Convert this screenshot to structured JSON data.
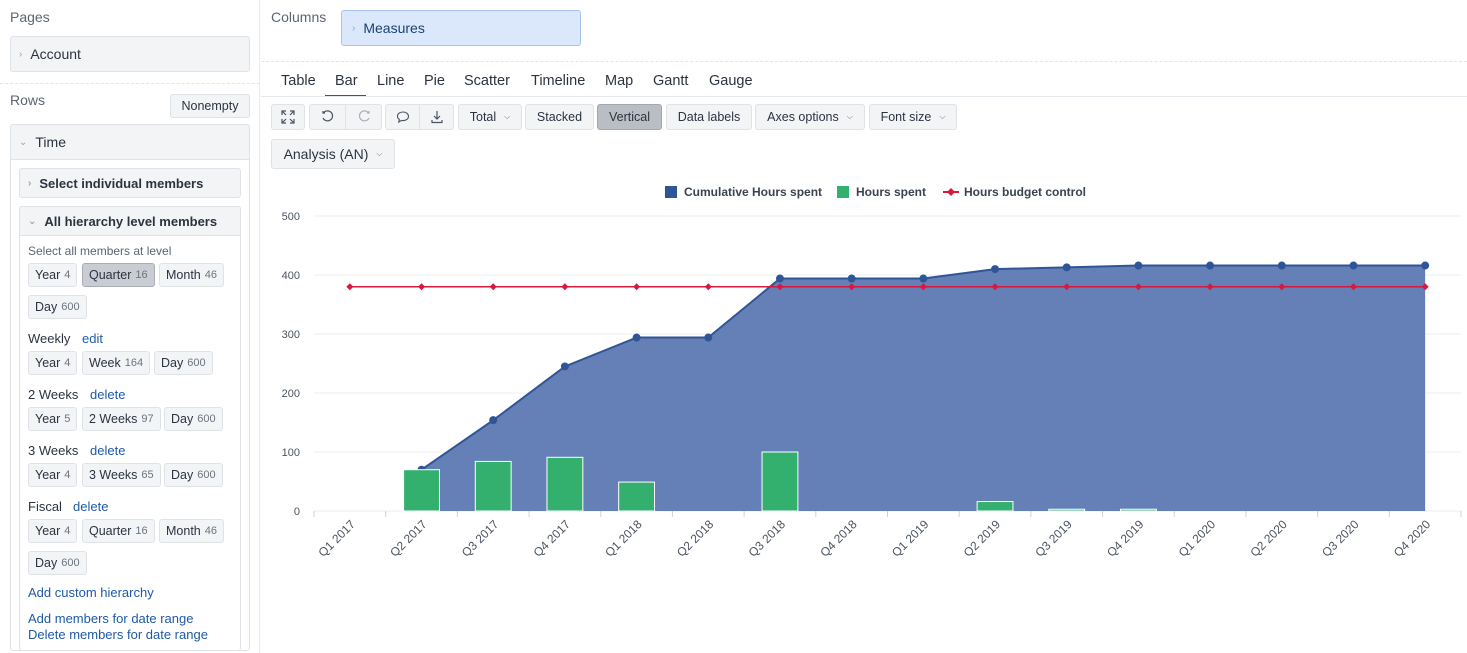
{
  "left": {
    "pages_title": "Pages",
    "pages_item": "Account",
    "rows_title": "Rows",
    "nonempty_label": "Nonempty",
    "time_title": "Time",
    "select_individual": "Select individual members",
    "all_hierarchy": "All hierarchy level members",
    "select_all_at_level": "Select all members at level",
    "default_levels": [
      {
        "label": "Year",
        "count": "4"
      },
      {
        "label": "Quarter",
        "count": "16"
      },
      {
        "label": "Month",
        "count": "46"
      },
      {
        "label": "Day",
        "count": "600"
      }
    ],
    "weekly": {
      "title": "Weekly",
      "action": "edit",
      "levels": [
        {
          "label": "Year",
          "count": "4"
        },
        {
          "label": "Week",
          "count": "164"
        },
        {
          "label": "Day",
          "count": "600"
        }
      ]
    },
    "two_weeks": {
      "title": "2 Weeks",
      "action": "delete",
      "levels": [
        {
          "label": "Year",
          "count": "5"
        },
        {
          "label": "2 Weeks",
          "count": "97"
        },
        {
          "label": "Day",
          "count": "600"
        }
      ]
    },
    "three_weeks": {
      "title": "3 Weeks",
      "action": "delete",
      "levels": [
        {
          "label": "Year",
          "count": "4"
        },
        {
          "label": "3 Weeks",
          "count": "65"
        },
        {
          "label": "Day",
          "count": "600"
        }
      ]
    },
    "fiscal": {
      "title": "Fiscal",
      "action": "delete",
      "levels": [
        {
          "label": "Year",
          "count": "4"
        },
        {
          "label": "Quarter",
          "count": "16"
        },
        {
          "label": "Month",
          "count": "46"
        },
        {
          "label": "Day",
          "count": "600"
        }
      ]
    },
    "add_custom_hierarchy": "Add custom hierarchy",
    "add_members_range": "Add members for date range",
    "delete_members_range": "Delete members for date range"
  },
  "columns": {
    "title": "Columns",
    "item": "Measures"
  },
  "tabs": [
    "Table",
    "Bar",
    "Line",
    "Pie",
    "Scatter",
    "Timeline",
    "Map",
    "Gantt",
    "Gauge"
  ],
  "active_tab": "Bar",
  "toolbar": {
    "total": "Total",
    "stacked": "Stacked",
    "vertical": "Vertical",
    "data_labels": "Data labels",
    "axes_options": "Axes options",
    "font_size": "Font size"
  },
  "analysis_dropdown": "Analysis (AN)",
  "colors": {
    "area": "#6480b6",
    "area_line": "#2f5597",
    "bar": "#33b06d",
    "budget": "#d6193f",
    "selected": "#c9ccd2",
    "columns_item_bg": "#dbe8fb"
  },
  "chart_data": {
    "type": "bar",
    "categories": [
      "Q1 2017",
      "Q2 2017",
      "Q3 2017",
      "Q4 2017",
      "Q1 2018",
      "Q2 2018",
      "Q3 2018",
      "Q4 2018",
      "Q1 2019",
      "Q2 2019",
      "Q3 2019",
      "Q4 2019",
      "Q1 2020",
      "Q2 2020",
      "Q3 2020",
      "Q4 2020"
    ],
    "ylim": [
      0,
      500
    ],
    "yticks": [
      0,
      100,
      200,
      300,
      400,
      500
    ],
    "grid": true,
    "legend_position": "top",
    "series": [
      {
        "name": "Cumulative Hours spent",
        "type": "area",
        "values": [
          null,
          70,
          154,
          245,
          294,
          294,
          394,
          394,
          394,
          410,
          413,
          416,
          416,
          416,
          416,
          416
        ]
      },
      {
        "name": "Hours spent",
        "type": "bar",
        "values": [
          null,
          70,
          84,
          91,
          49,
          null,
          100,
          null,
          null,
          16,
          3,
          3,
          null,
          null,
          null,
          null
        ]
      },
      {
        "name": "Hours budget control",
        "type": "line",
        "values": [
          380,
          380,
          380,
          380,
          380,
          380,
          380,
          380,
          380,
          380,
          380,
          380,
          380,
          380,
          380,
          380
        ]
      }
    ]
  }
}
